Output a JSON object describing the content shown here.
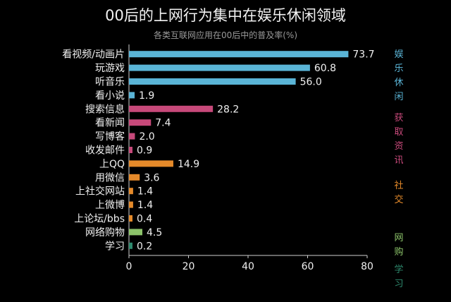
{
  "title": "00后的上网行为集中在娱乐休闲领域",
  "subtitle": "各类互联网应用在00后中的普及率(%)",
  "chart_data": {
    "type": "bar",
    "orientation": "horizontal",
    "categories": [
      "看视频/动画片",
      "玩游戏",
      "听音乐",
      "看小说",
      "搜索信息",
      "看新闻",
      "写博客",
      "收发邮件",
      "上QQ",
      "用微信",
      "上社交网站",
      "上微博",
      "上论坛/bbs",
      "网络购物",
      "学习"
    ],
    "values": [
      73.7,
      60.8,
      56.0,
      1.9,
      28.2,
      7.4,
      2.0,
      0.9,
      14.9,
      3.6,
      1.4,
      1.4,
      0.4,
      4.5,
      0.2
    ],
    "value_labels": [
      "73.7",
      "60.8",
      "56.0",
      "1.9",
      "28.2",
      "7.4",
      "2.0",
      "0.9",
      "14.9",
      "3.6",
      "1.4",
      "1.4",
      "0.4",
      "4.5",
      "0.2"
    ],
    "xlim": [
      0,
      80
    ],
    "xticks": [
      "0",
      "20",
      "40",
      "60",
      "80"
    ],
    "groups": [
      {
        "label": "娱乐休闲",
        "start": 0,
        "count": 4,
        "color": "#5ab4d6"
      },
      {
        "label": "获取资讯",
        "start": 4,
        "count": 4,
        "color": "#c7497a"
      },
      {
        "label": "社交",
        "start": 8,
        "count": 5,
        "color": "#e58a2a"
      },
      {
        "label": "网购",
        "start": 13,
        "count": 1,
        "color": "#8cc36a"
      },
      {
        "label": "学习",
        "start": 14,
        "count": 1,
        "color": "#2e8a6e"
      }
    ],
    "side_label_groups": [
      {
        "chars": [
          "娱",
          "乐",
          "休",
          "闲"
        ],
        "color": "#5ab4d6"
      },
      {
        "chars": [
          "获",
          "取",
          "资",
          "讯"
        ],
        "color": "#c7497a"
      },
      {
        "chars": [
          "社",
          "交"
        ],
        "color": "#e58a2a"
      },
      {
        "chars": [
          "网",
          "购"
        ],
        "color": "#8cc36a"
      },
      {
        "chars": [
          "学",
          "习"
        ],
        "color": "#2e8a6e"
      }
    ]
  }
}
